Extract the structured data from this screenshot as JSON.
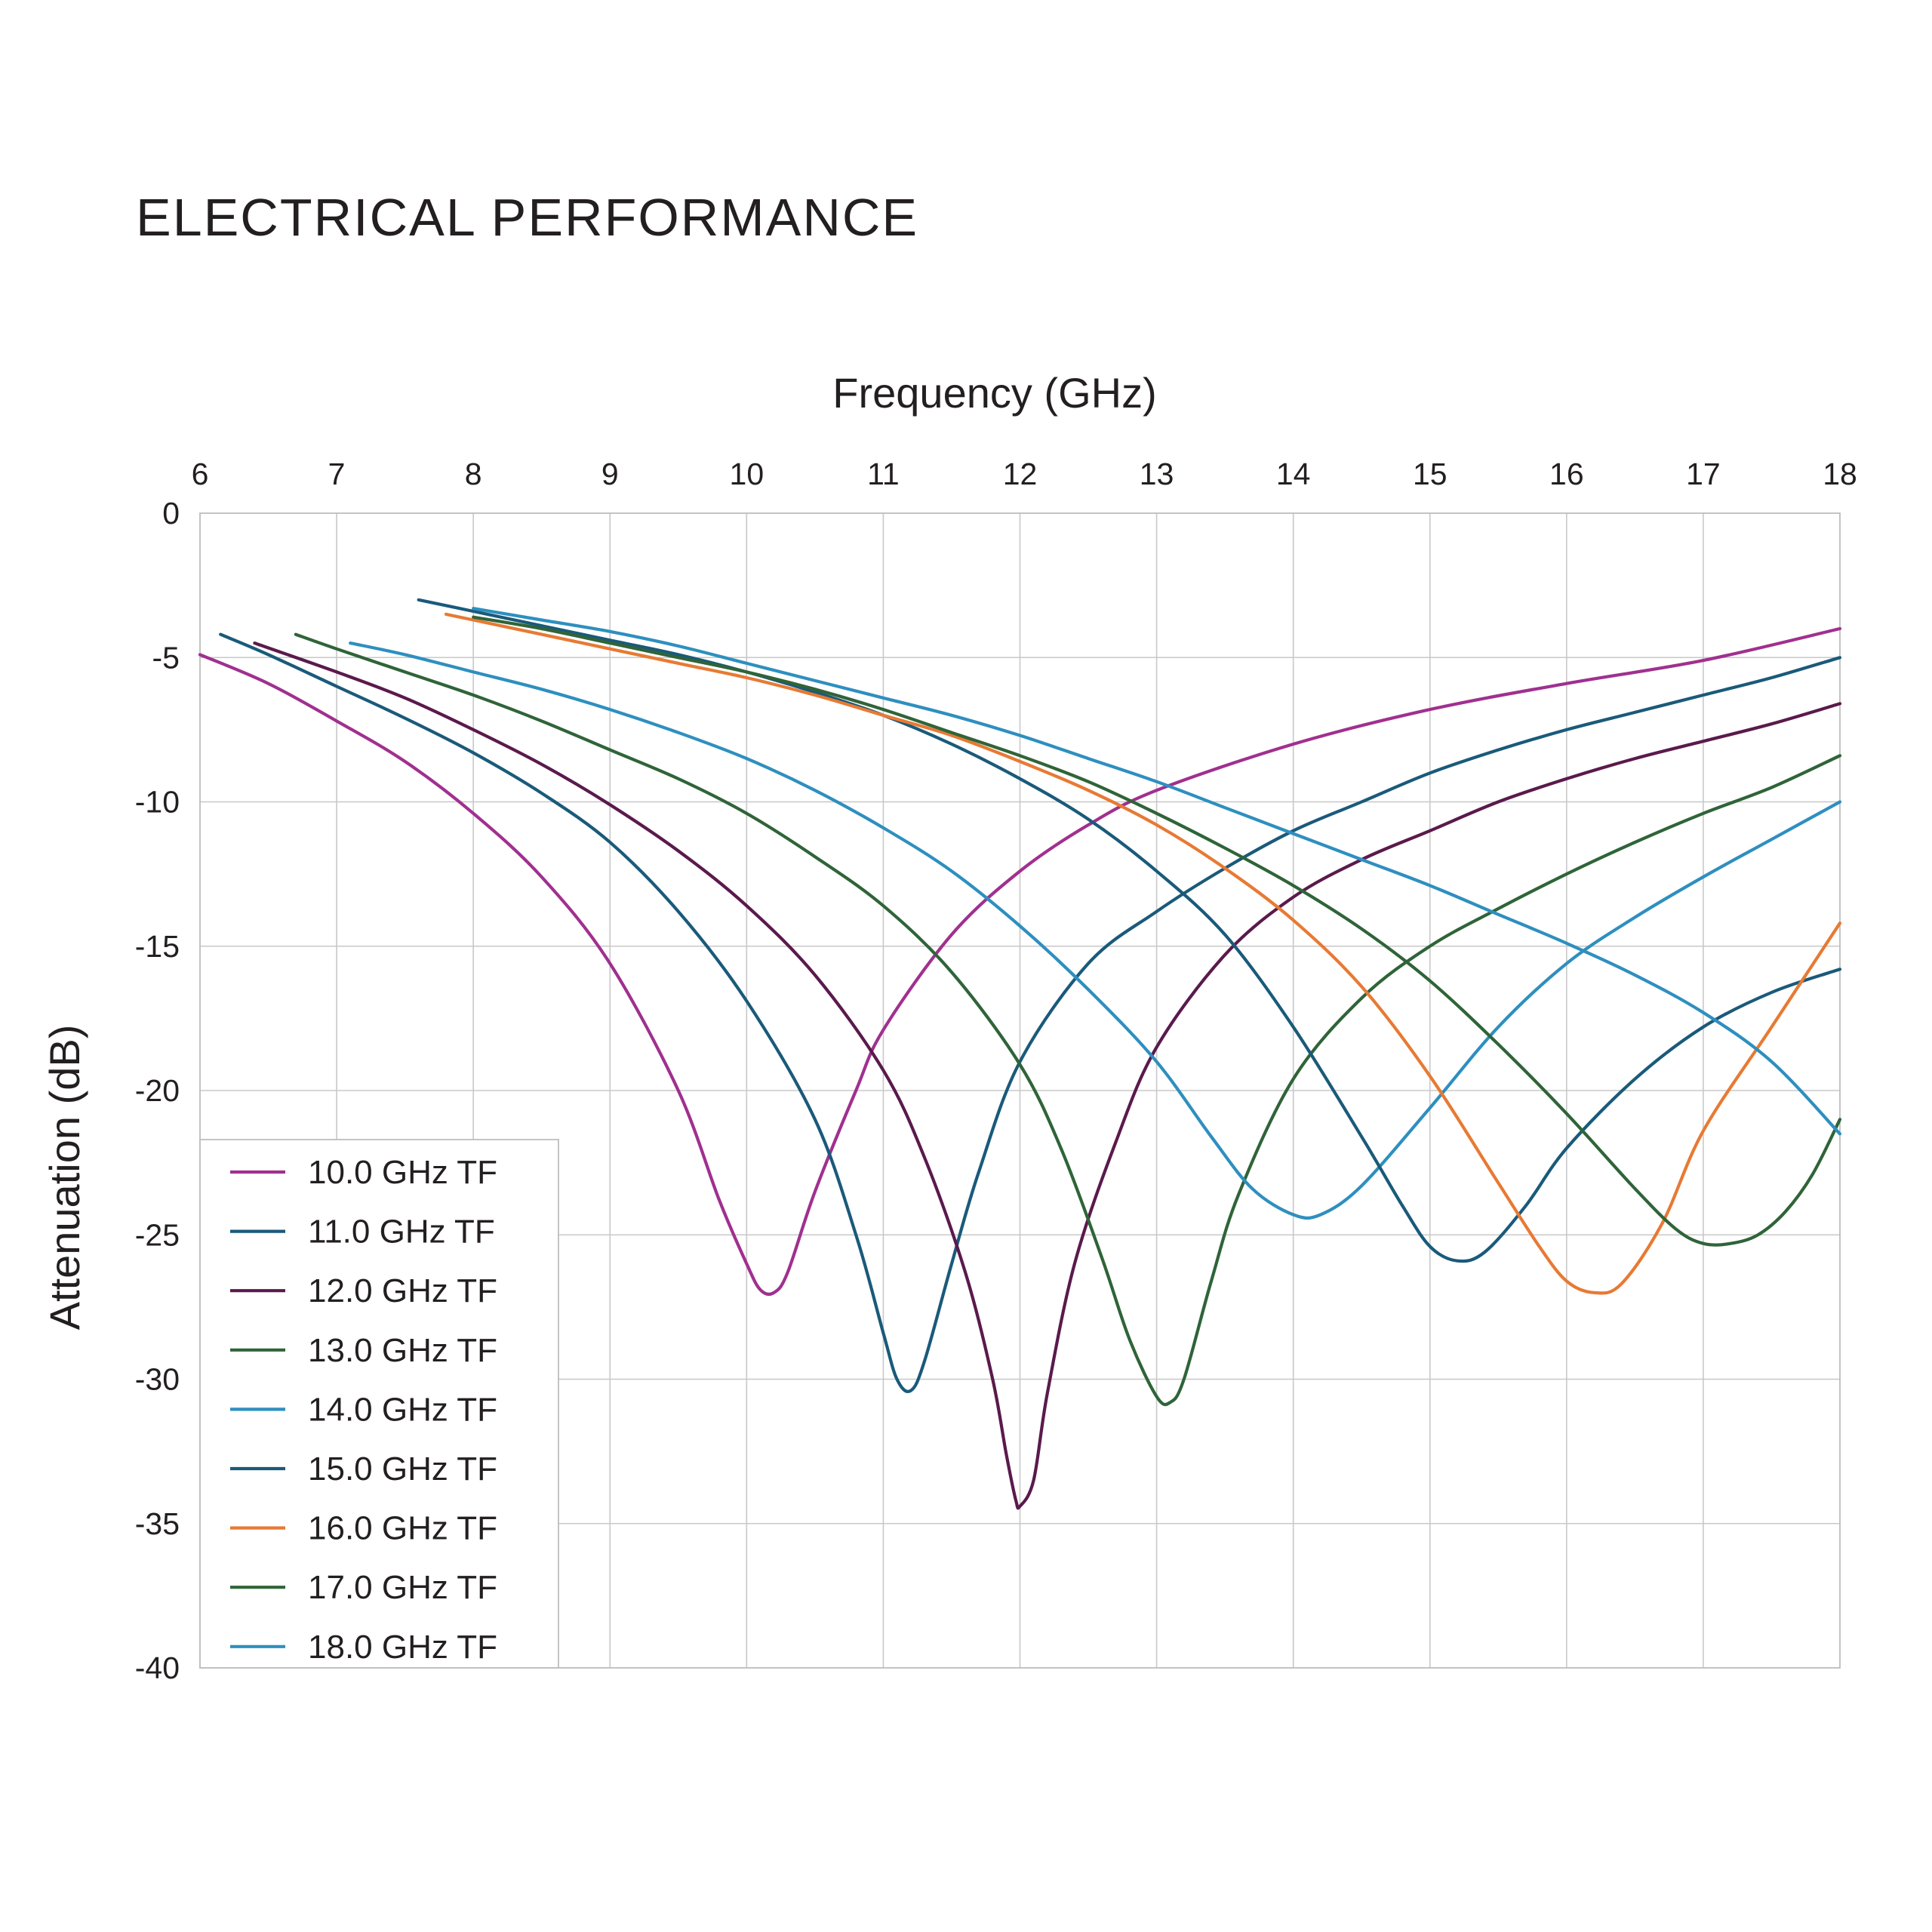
{
  "title": "ELECTRICAL PERFORMANCE",
  "chart_data": {
    "type": "line",
    "title": "ELECTRICAL PERFORMANCE",
    "xlabel": "Frequency (GHz)",
    "ylabel": "Attenuation (dB)",
    "xlim": [
      6,
      18
    ],
    "ylim": [
      -40,
      0
    ],
    "x_ticks": [
      "6",
      "7",
      "8",
      "9",
      "10",
      "11",
      "12",
      "13",
      "14",
      "15",
      "16",
      "17",
      "18"
    ],
    "y_ticks": [
      "0",
      "-5",
      "-10",
      "-15",
      "-20",
      "-25",
      "-30",
      "-35",
      "-40"
    ],
    "x_axis_position": "top",
    "grid": true,
    "legend_position": "bottom-left",
    "series": [
      {
        "name": "10.0 GHz TF",
        "color": "#a0308f",
        "points": [
          [
            6.0,
            -4.9
          ],
          [
            6.5,
            -5.9
          ],
          [
            7.0,
            -7.2
          ],
          [
            7.5,
            -8.6
          ],
          [
            8.0,
            -10.4
          ],
          [
            8.5,
            -12.6
          ],
          [
            9.0,
            -15.6
          ],
          [
            9.5,
            -20.0
          ],
          [
            9.8,
            -23.8
          ],
          [
            10.0,
            -26.0
          ],
          [
            10.1,
            -26.9
          ],
          [
            10.2,
            -27.0
          ],
          [
            10.3,
            -26.3
          ],
          [
            10.5,
            -23.5
          ],
          [
            10.8,
            -20.0
          ],
          [
            11.0,
            -17.9
          ],
          [
            11.5,
            -14.6
          ],
          [
            12.0,
            -12.4
          ],
          [
            12.5,
            -10.8
          ],
          [
            13.0,
            -9.6
          ],
          [
            14.0,
            -8.0
          ],
          [
            15.0,
            -6.8
          ],
          [
            16.0,
            -5.9
          ],
          [
            17.0,
            -5.1
          ],
          [
            18.0,
            -4.0
          ]
        ]
      },
      {
        "name": "11.0 GHz TF",
        "color": "#1a5a7a",
        "points": [
          [
            6.15,
            -4.2
          ],
          [
            6.5,
            -4.9
          ],
          [
            7.0,
            -6.0
          ],
          [
            7.5,
            -7.1
          ],
          [
            8.0,
            -8.3
          ],
          [
            8.5,
            -9.7
          ],
          [
            9.0,
            -11.4
          ],
          [
            9.5,
            -13.8
          ],
          [
            10.0,
            -16.9
          ],
          [
            10.5,
            -21.0
          ],
          [
            10.8,
            -25.0
          ],
          [
            11.0,
            -28.4
          ],
          [
            11.1,
            -30.0
          ],
          [
            11.2,
            -30.4
          ],
          [
            11.3,
            -29.4
          ],
          [
            11.5,
            -26.0
          ],
          [
            11.7,
            -22.8
          ],
          [
            12.0,
            -19.0
          ],
          [
            12.5,
            -15.6
          ],
          [
            13.0,
            -13.8
          ],
          [
            13.5,
            -12.3
          ],
          [
            14.0,
            -11.0
          ],
          [
            14.5,
            -10.0
          ],
          [
            15.0,
            -9.0
          ],
          [
            15.5,
            -8.2
          ],
          [
            16.0,
            -7.5
          ],
          [
            16.5,
            -6.9
          ],
          [
            17.0,
            -6.3
          ],
          [
            17.5,
            -5.7
          ],
          [
            18.0,
            -5.0
          ]
        ]
      },
      {
        "name": "12.0 GHz TF",
        "color": "#5a1a4c",
        "points": [
          [
            6.4,
            -4.5
          ],
          [
            7.0,
            -5.5
          ],
          [
            7.5,
            -6.4
          ],
          [
            8.0,
            -7.5
          ],
          [
            8.5,
            -8.7
          ],
          [
            9.0,
            -10.1
          ],
          [
            9.5,
            -11.7
          ],
          [
            10.0,
            -13.6
          ],
          [
            10.5,
            -16.0
          ],
          [
            11.0,
            -19.3
          ],
          [
            11.3,
            -22.3
          ],
          [
            11.6,
            -26.3
          ],
          [
            11.8,
            -30.0
          ],
          [
            11.9,
            -32.6
          ],
          [
            11.97,
            -34.2
          ],
          [
            12.0,
            -34.4
          ],
          [
            12.1,
            -33.5
          ],
          [
            12.2,
            -30.5
          ],
          [
            12.4,
            -26.0
          ],
          [
            12.7,
            -21.8
          ],
          [
            13.0,
            -18.5
          ],
          [
            13.5,
            -15.3
          ],
          [
            14.0,
            -13.3
          ],
          [
            14.5,
            -12.0
          ],
          [
            15.0,
            -11.0
          ],
          [
            15.5,
            -10.0
          ],
          [
            16.0,
            -9.2
          ],
          [
            16.5,
            -8.5
          ],
          [
            17.0,
            -7.9
          ],
          [
            17.5,
            -7.3
          ],
          [
            18.0,
            -6.6
          ]
        ]
      },
      {
        "name": "13.0 GHz TF",
        "color": "#2f6438",
        "points": [
          [
            6.7,
            -4.2
          ],
          [
            7.0,
            -4.7
          ],
          [
            7.5,
            -5.5
          ],
          [
            8.0,
            -6.3
          ],
          [
            8.5,
            -7.2
          ],
          [
            9.0,
            -8.2
          ],
          [
            9.5,
            -9.2
          ],
          [
            10.0,
            -10.4
          ],
          [
            10.5,
            -11.9
          ],
          [
            11.0,
            -13.6
          ],
          [
            11.5,
            -15.9
          ],
          [
            12.0,
            -19.1
          ],
          [
            12.3,
            -22.0
          ],
          [
            12.6,
            -25.8
          ],
          [
            12.8,
            -28.6
          ],
          [
            13.0,
            -30.6
          ],
          [
            13.1,
            -30.8
          ],
          [
            13.2,
            -30.0
          ],
          [
            13.4,
            -26.6
          ],
          [
            13.6,
            -23.6
          ],
          [
            14.0,
            -19.6
          ],
          [
            14.5,
            -16.8
          ],
          [
            15.0,
            -15.0
          ],
          [
            15.5,
            -13.7
          ],
          [
            16.0,
            -12.5
          ],
          [
            16.5,
            -11.4
          ],
          [
            17.0,
            -10.4
          ],
          [
            17.5,
            -9.5
          ],
          [
            18.0,
            -8.4
          ]
        ]
      },
      {
        "name": "14.0 GHz TF",
        "color": "#2e8fbf",
        "points": [
          [
            7.1,
            -4.5
          ],
          [
            7.5,
            -4.9
          ],
          [
            8.0,
            -5.5
          ],
          [
            8.5,
            -6.1
          ],
          [
            9.0,
            -6.8
          ],
          [
            9.5,
            -7.6
          ],
          [
            10.0,
            -8.5
          ],
          [
            10.5,
            -9.6
          ],
          [
            11.0,
            -10.9
          ],
          [
            11.5,
            -12.4
          ],
          [
            12.0,
            -14.3
          ],
          [
            12.5,
            -16.5
          ],
          [
            13.0,
            -19.0
          ],
          [
            13.4,
            -21.6
          ],
          [
            13.7,
            -23.4
          ],
          [
            14.0,
            -24.3
          ],
          [
            14.2,
            -24.3
          ],
          [
            14.5,
            -23.3
          ],
          [
            15.0,
            -20.6
          ],
          [
            15.5,
            -17.8
          ],
          [
            16.0,
            -15.6
          ],
          [
            16.5,
            -14.0
          ],
          [
            17.0,
            -12.6
          ],
          [
            17.5,
            -11.3
          ],
          [
            18.0,
            -10.0
          ]
        ]
      },
      {
        "name": "15.0 GHz TF",
        "color": "#1a5a7a",
        "points": [
          [
            7.6,
            -3.0
          ],
          [
            8.0,
            -3.4
          ],
          [
            8.5,
            -3.9
          ],
          [
            9.0,
            -4.4
          ],
          [
            9.5,
            -4.9
          ],
          [
            10.0,
            -5.5
          ],
          [
            10.5,
            -6.2
          ],
          [
            11.0,
            -7.0
          ],
          [
            11.5,
            -8.0
          ],
          [
            12.0,
            -9.2
          ],
          [
            12.5,
            -10.6
          ],
          [
            13.0,
            -12.4
          ],
          [
            13.5,
            -14.6
          ],
          [
            14.0,
            -17.8
          ],
          [
            14.5,
            -21.6
          ],
          [
            14.8,
            -24.0
          ],
          [
            15.0,
            -25.4
          ],
          [
            15.2,
            -25.9
          ],
          [
            15.4,
            -25.6
          ],
          [
            15.7,
            -24.0
          ],
          [
            16.0,
            -22.0
          ],
          [
            16.5,
            -19.6
          ],
          [
            17.0,
            -17.8
          ],
          [
            17.5,
            -16.6
          ],
          [
            18.0,
            -15.8
          ]
        ]
      },
      {
        "name": "16.0 GHz TF",
        "color": "#e77a34",
        "points": [
          [
            7.8,
            -3.5
          ],
          [
            8.0,
            -3.7
          ],
          [
            8.5,
            -4.2
          ],
          [
            9.0,
            -4.7
          ],
          [
            9.5,
            -5.2
          ],
          [
            10.0,
            -5.7
          ],
          [
            10.5,
            -6.3
          ],
          [
            11.0,
            -7.0
          ],
          [
            11.5,
            -7.7
          ],
          [
            12.0,
            -8.6
          ],
          [
            12.5,
            -9.6
          ],
          [
            13.0,
            -10.8
          ],
          [
            13.5,
            -12.3
          ],
          [
            14.0,
            -14.1
          ],
          [
            14.5,
            -16.4
          ],
          [
            15.0,
            -19.5
          ],
          [
            15.5,
            -23.2
          ],
          [
            15.8,
            -25.4
          ],
          [
            16.0,
            -26.6
          ],
          [
            16.2,
            -27.0
          ],
          [
            16.4,
            -26.7
          ],
          [
            16.7,
            -24.6
          ],
          [
            17.0,
            -21.4
          ],
          [
            17.5,
            -17.8
          ],
          [
            18.0,
            -14.2
          ]
        ]
      },
      {
        "name": "17.0 GHz TF",
        "color": "#2f6438",
        "points": [
          [
            8.0,
            -3.6
          ],
          [
            8.5,
            -4.0
          ],
          [
            9.0,
            -4.5
          ],
          [
            9.5,
            -5.0
          ],
          [
            10.0,
            -5.5
          ],
          [
            10.5,
            -6.1
          ],
          [
            11.0,
            -6.8
          ],
          [
            11.5,
            -7.6
          ],
          [
            12.0,
            -8.4
          ],
          [
            12.5,
            -9.3
          ],
          [
            13.0,
            -10.4
          ],
          [
            13.5,
            -11.6
          ],
          [
            14.0,
            -12.9
          ],
          [
            14.5,
            -14.4
          ],
          [
            15.0,
            -16.2
          ],
          [
            15.5,
            -18.4
          ],
          [
            16.0,
            -20.8
          ],
          [
            16.5,
            -23.4
          ],
          [
            16.8,
            -24.8
          ],
          [
            17.0,
            -25.3
          ],
          [
            17.2,
            -25.3
          ],
          [
            17.4,
            -25.0
          ],
          [
            17.6,
            -24.2
          ],
          [
            17.8,
            -22.9
          ],
          [
            18.0,
            -21.0
          ]
        ]
      },
      {
        "name": "18.0 GHz TF",
        "color": "#2e8fbf",
        "points": [
          [
            8.0,
            -3.3
          ],
          [
            8.5,
            -3.7
          ],
          [
            9.0,
            -4.1
          ],
          [
            9.5,
            -4.6
          ],
          [
            10.0,
            -5.2
          ],
          [
            10.5,
            -5.8
          ],
          [
            11.0,
            -6.4
          ],
          [
            11.5,
            -7.0
          ],
          [
            12.0,
            -7.7
          ],
          [
            12.5,
            -8.5
          ],
          [
            13.0,
            -9.3
          ],
          [
            13.5,
            -10.2
          ],
          [
            14.0,
            -11.1
          ],
          [
            14.5,
            -12.0
          ],
          [
            15.0,
            -12.9
          ],
          [
            15.5,
            -13.9
          ],
          [
            16.0,
            -14.9
          ],
          [
            16.5,
            -16.0
          ],
          [
            17.0,
            -17.3
          ],
          [
            17.5,
            -19.0
          ],
          [
            18.0,
            -21.5
          ]
        ]
      }
    ]
  }
}
